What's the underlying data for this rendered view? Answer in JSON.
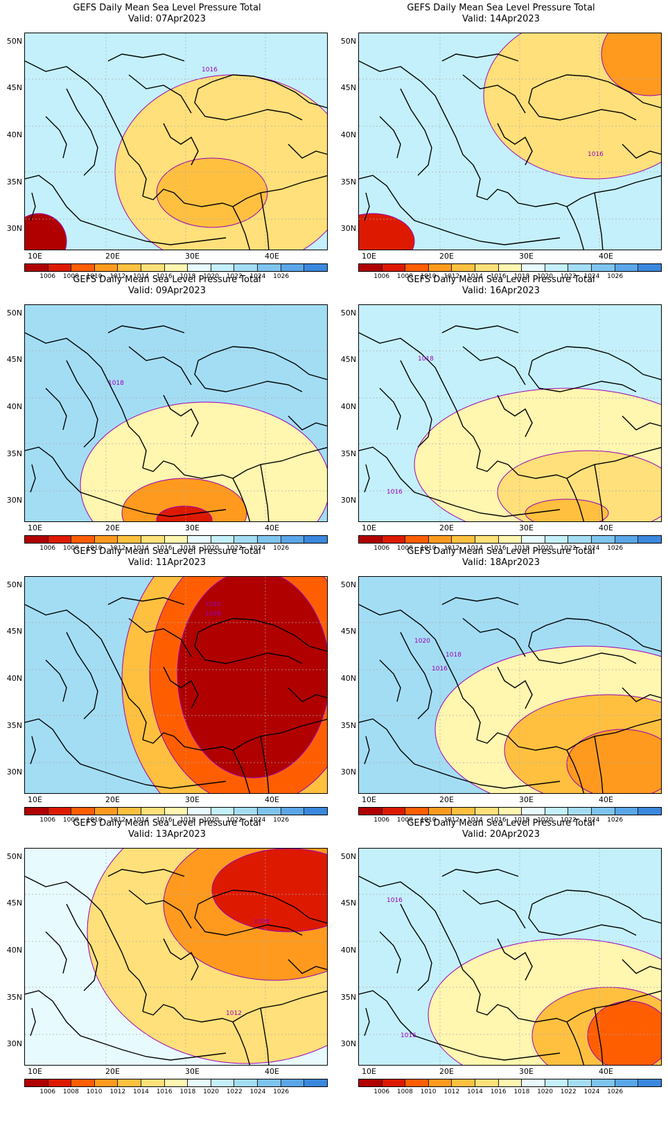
{
  "title": "GEFS Daily Mean Sea Level Pressure Total",
  "panels": [
    {
      "valid": "Valid: 07Apr2023",
      "contour_labels": [
        "1016"
      ]
    },
    {
      "valid": "Valid: 14Apr2023",
      "contour_labels": [
        "1016"
      ]
    },
    {
      "valid": "Valid: 09Apr2023",
      "contour_labels": [
        "1018"
      ]
    },
    {
      "valid": "Valid: 16Apr2023",
      "contour_labels": [
        "1018",
        "1016"
      ]
    },
    {
      "valid": "Valid: 11Apr2023",
      "contour_labels": [
        "1010",
        "1008"
      ]
    },
    {
      "valid": "Valid: 18Apr2023",
      "contour_labels": [
        "1020",
        "1018",
        "1016"
      ]
    },
    {
      "valid": "Valid: 13Apr2023",
      "contour_labels": [
        "1008",
        "1012"
      ]
    },
    {
      "valid": "Valid: 20Apr2023",
      "contour_labels": [
        "1016",
        "1016"
      ]
    }
  ],
  "lat_labels": [
    "50N",
    "45N",
    "40N",
    "35N",
    "30N"
  ],
  "lon_labels": [
    "10E",
    "20E",
    "30E",
    "40E"
  ],
  "colorbar": {
    "ticks": [
      "1006",
      "1008",
      "1010",
      "1012",
      "1014",
      "1016",
      "1018",
      "1020",
      "1022",
      "1024",
      "1026"
    ],
    "colors": [
      "#b00000",
      "#dd1a00",
      "#ff5e00",
      "#ff9a1e",
      "#ffc040",
      "#ffe07a",
      "#fff6b0",
      "#e7fbff",
      "#c4f0fb",
      "#a3ddf4",
      "#7ec4ef",
      "#5aa6e8",
      "#3a88dd"
    ]
  },
  "colors": {
    "contour": "#9a00b8",
    "coast": "#000000",
    "grid": "#aaaaaa"
  }
}
